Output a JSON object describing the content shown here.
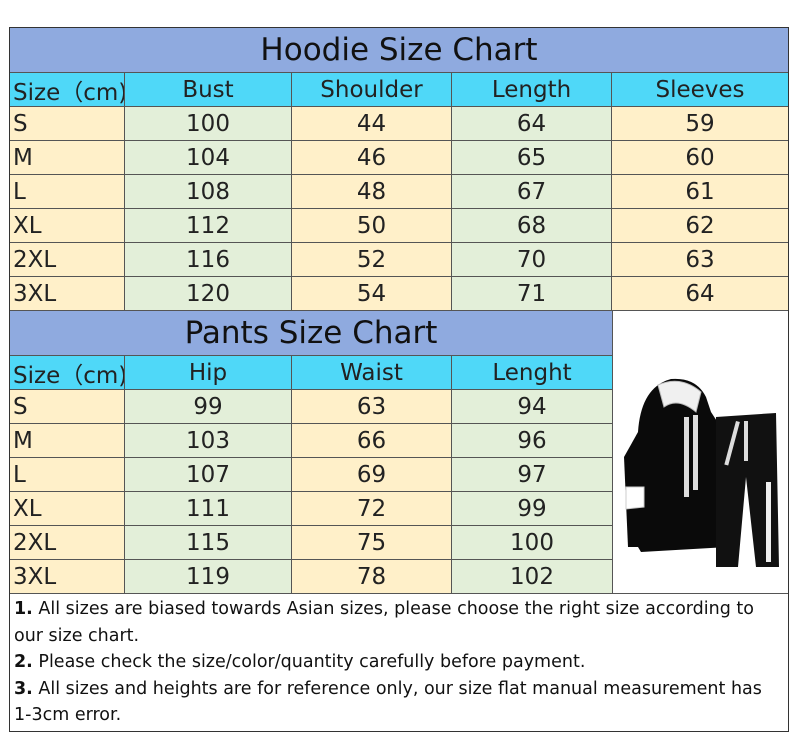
{
  "hoodie": {
    "title": "Hoodie Size Chart",
    "headers": [
      "Size（cm)",
      "Bust",
      "Shoulder",
      "Length",
      "Sleeves"
    ],
    "rows": [
      [
        "S",
        "100",
        "44",
        "64",
        "59"
      ],
      [
        "M",
        "104",
        "46",
        "65",
        "60"
      ],
      [
        "L",
        "108",
        "48",
        "67",
        "61"
      ],
      [
        "XL",
        "112",
        "50",
        "68",
        "62"
      ],
      [
        "2XL",
        "116",
        "52",
        "70",
        "63"
      ],
      [
        "3XL",
        "120",
        "54",
        "71",
        "64"
      ]
    ]
  },
  "pants": {
    "title": "Pants Size Chart",
    "headers": [
      "Size（cm)",
      "Hip",
      "Waist",
      "Lenght"
    ],
    "rows": [
      [
        "S",
        "99",
        "63",
        "94"
      ],
      [
        "M",
        "103",
        "66",
        "96"
      ],
      [
        "L",
        "107",
        "69",
        "97"
      ],
      [
        "XL",
        "111",
        "72",
        "99"
      ],
      [
        "2XL",
        "115",
        "75",
        "100"
      ],
      [
        "3XL",
        "119",
        "78",
        "102"
      ]
    ]
  },
  "notes": [
    {
      "num": "1.",
      "text": " All sizes are biased towards Asian sizes, please choose the right size according to our size chart."
    },
    {
      "num": "2.",
      "text": " Please check the size/color/quantity carefully before payment."
    },
    {
      "num": "3.",
      "text": " All sizes and heights are for reference only, our size flat manual measurement has 1-3cm error."
    }
  ],
  "colors": {
    "title_bg": "#8faadf",
    "header_bg": "#4fd8f8",
    "cream": "#fff0c9",
    "green": "#e3efd9"
  }
}
